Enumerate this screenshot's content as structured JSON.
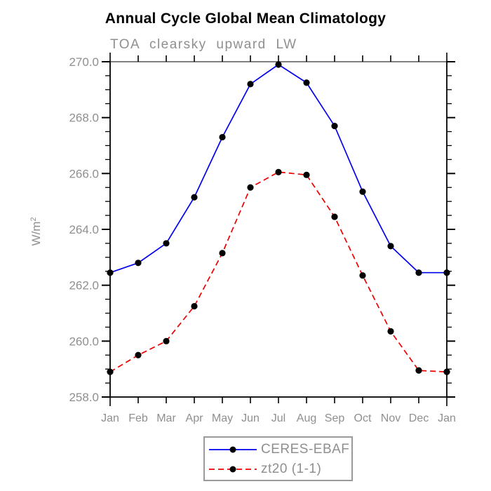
{
  "page": {
    "title": "Annual Cycle Global Mean Climatology",
    "subtitle": "TOA clearsky upward LW"
  },
  "chart_data": {
    "type": "line",
    "title": "Annual Cycle Global Mean Climatology",
    "subtitle": "TOA clearsky upward LW",
    "xlabel": "",
    "ylabel": "W/m²",
    "categories": [
      "Jan",
      "Feb",
      "Mar",
      "Apr",
      "May",
      "Jun",
      "Jul",
      "Aug",
      "Sep",
      "Oct",
      "Nov",
      "Dec",
      "Jan"
    ],
    "series": [
      {
        "name": "CERES-EBAF",
        "color": "#0000ee",
        "line_style": "solid",
        "marker": "filled-circle",
        "marker_color": "#000000",
        "values": [
          262.45,
          262.8,
          263.5,
          265.15,
          267.3,
          269.2,
          269.9,
          269.25,
          267.7,
          265.35,
          263.4,
          262.45,
          262.45
        ]
      },
      {
        "name": "zt20 (1-1)",
        "color": "#ee0000",
        "line_style": "dashed",
        "marker": "filled-circle",
        "marker_color": "#000000",
        "values": [
          258.9,
          259.5,
          260.0,
          261.25,
          263.15,
          265.5,
          266.05,
          265.95,
          264.45,
          262.35,
          260.35,
          258.95,
          258.9
        ]
      }
    ],
    "ylim": [
      258.0,
      270.0
    ],
    "yticks": [
      258,
      260,
      262,
      264,
      266,
      268,
      270
    ],
    "ytick_labels": [
      "258.0",
      "260.0",
      "262.0",
      "264.0",
      "266.0",
      "268.0",
      "270.0"
    ],
    "y_minor_tick_step": 0.5,
    "grid": false,
    "legend_position": "bottom-center",
    "axis_text_color": "#8f8f8f"
  },
  "legend": {
    "entries": [
      {
        "label": "CERES-EBAF"
      },
      {
        "label": "zt20 (1-1)"
      }
    ]
  }
}
